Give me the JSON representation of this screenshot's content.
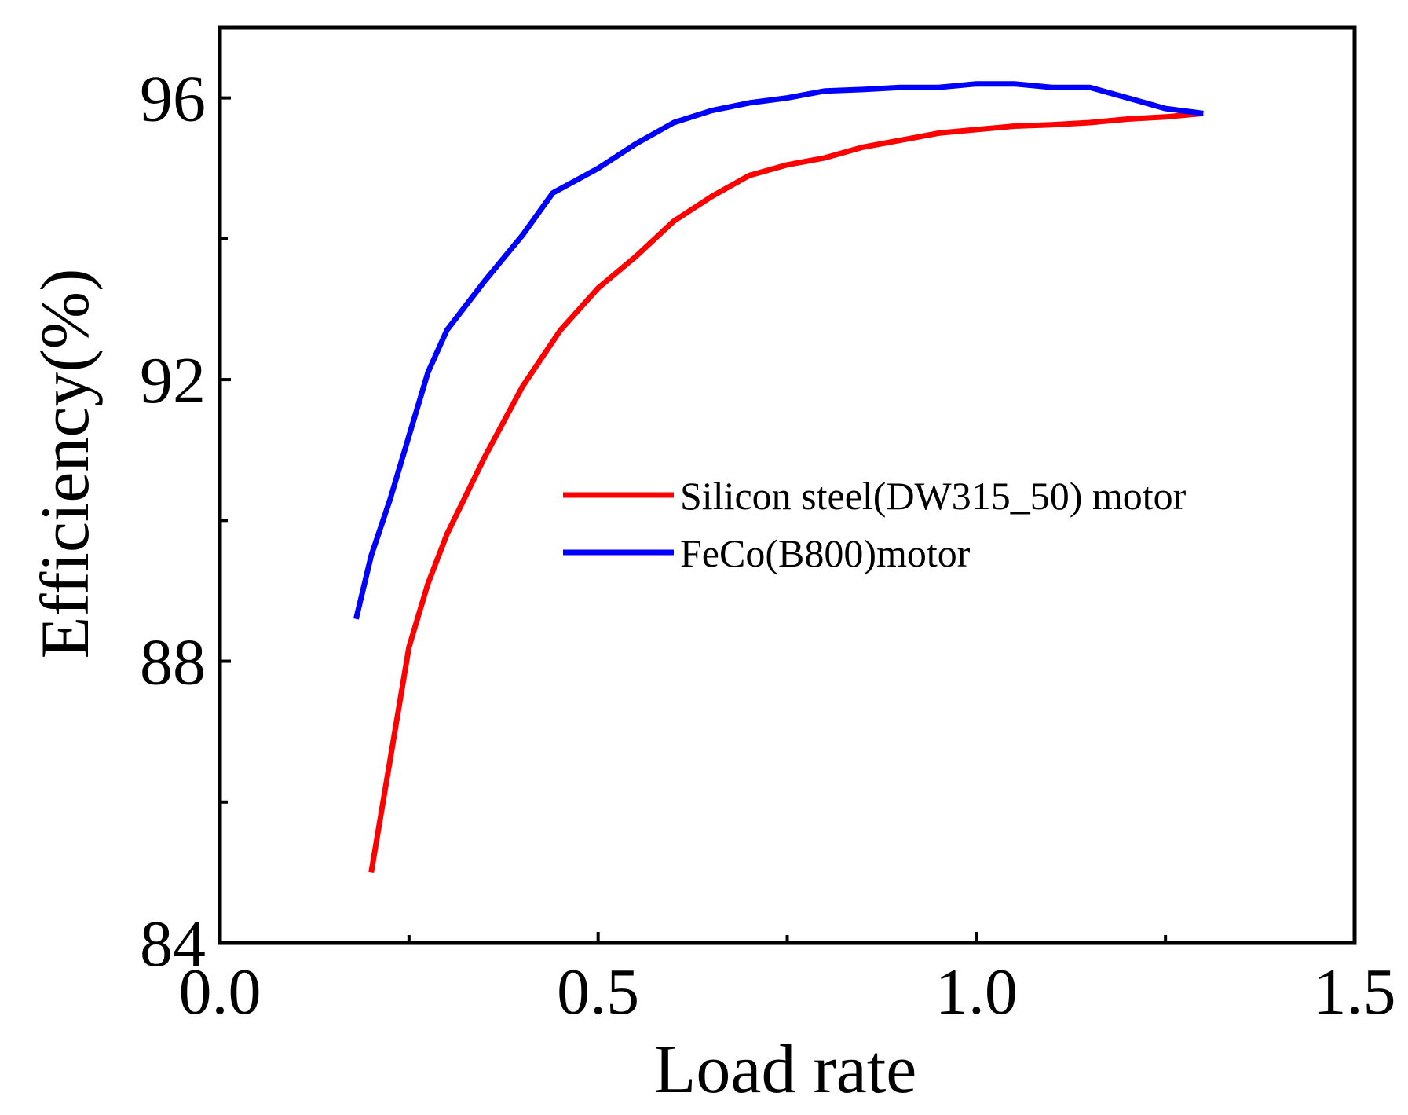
{
  "chart_data": {
    "type": "line",
    "title": "",
    "xlabel": "Load rate",
    "ylabel": "Efficiency(%)",
    "xlim": [
      0.0,
      1.5
    ],
    "ylim": [
      84,
      97
    ],
    "x_ticks": [
      "0.0",
      "0.5",
      "1.0",
      "1.5"
    ],
    "x_tick_values": [
      0.0,
      0.5,
      1.0,
      1.5
    ],
    "x_minor_tick_values": [
      0.25,
      0.75,
      1.25
    ],
    "y_ticks": [
      "84",
      "88",
      "92",
      "96"
    ],
    "y_tick_values": [
      84,
      88,
      92,
      96
    ],
    "y_minor_tick_values": [
      86,
      90,
      94
    ],
    "grid": false,
    "legend_position": "center-right",
    "series": [
      {
        "name": "Silicon steel(DW315_50) motor",
        "color": "#ff0000",
        "points": [
          [
            0.2,
            85.0
          ],
          [
            0.225,
            86.6
          ],
          [
            0.25,
            88.2
          ],
          [
            0.275,
            89.1
          ],
          [
            0.3,
            89.8
          ],
          [
            0.35,
            90.9
          ],
          [
            0.4,
            91.9
          ],
          [
            0.45,
            92.7
          ],
          [
            0.5,
            93.3
          ],
          [
            0.55,
            93.75
          ],
          [
            0.6,
            94.25
          ],
          [
            0.65,
            94.6
          ],
          [
            0.7,
            94.9
          ],
          [
            0.75,
            95.05
          ],
          [
            0.8,
            95.15
          ],
          [
            0.85,
            95.3
          ],
          [
            0.9,
            95.4
          ],
          [
            0.95,
            95.5
          ],
          [
            1.0,
            95.55
          ],
          [
            1.05,
            95.6
          ],
          [
            1.1,
            95.62
          ],
          [
            1.15,
            95.65
          ],
          [
            1.2,
            95.7
          ],
          [
            1.25,
            95.73
          ],
          [
            1.3,
            95.78
          ]
        ]
      },
      {
        "name": "FeCo(B800)motor",
        "color": "#0000ff",
        "points": [
          [
            0.18,
            88.6
          ],
          [
            0.2,
            89.5
          ],
          [
            0.225,
            90.3
          ],
          [
            0.25,
            91.2
          ],
          [
            0.275,
            92.1
          ],
          [
            0.3,
            92.7
          ],
          [
            0.35,
            93.4
          ],
          [
            0.4,
            94.05
          ],
          [
            0.44,
            94.65
          ],
          [
            0.5,
            95.0
          ],
          [
            0.55,
            95.35
          ],
          [
            0.6,
            95.65
          ],
          [
            0.65,
            95.82
          ],
          [
            0.7,
            95.93
          ],
          [
            0.75,
            96.0
          ],
          [
            0.8,
            96.1
          ],
          [
            0.85,
            96.12
          ],
          [
            0.9,
            96.15
          ],
          [
            0.95,
            96.15
          ],
          [
            1.0,
            96.2
          ],
          [
            1.05,
            96.2
          ],
          [
            1.1,
            96.15
          ],
          [
            1.15,
            96.15
          ],
          [
            1.2,
            96.0
          ],
          [
            1.25,
            95.85
          ],
          [
            1.3,
            95.78
          ]
        ]
      }
    ]
  }
}
